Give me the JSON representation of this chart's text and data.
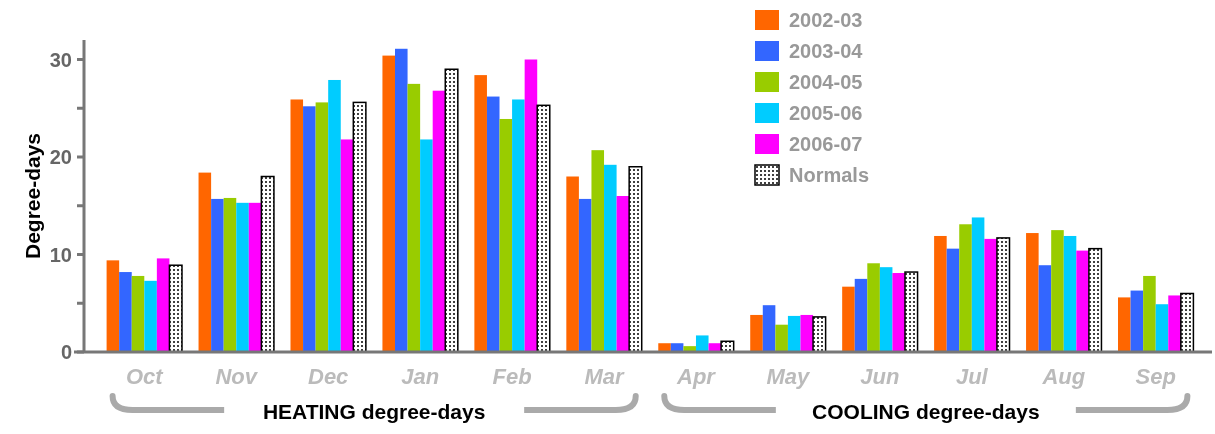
{
  "chart_data": {
    "type": "bar",
    "ylabel": "Degree-days",
    "categories": [
      "Oct",
      "Nov",
      "Dec",
      "Jan",
      "Feb",
      "Mar",
      "Apr",
      "May",
      "Jun",
      "Jul",
      "Aug",
      "Sep"
    ],
    "series": [
      {
        "name": "2002-03",
        "color": "#ff6600",
        "values": [
          9.4,
          18.4,
          25.9,
          30.4,
          28.4,
          18.0,
          0.9,
          3.8,
          6.7,
          11.9,
          12.2,
          5.6
        ]
      },
      {
        "name": "2003-04",
        "color": "#3366ff",
        "values": [
          8.2,
          15.7,
          25.2,
          31.1,
          26.2,
          15.7,
          0.9,
          4.8,
          7.5,
          10.6,
          8.9,
          6.3
        ]
      },
      {
        "name": "2004-05",
        "color": "#99cc00",
        "values": [
          7.8,
          15.8,
          25.6,
          27.5,
          23.9,
          20.7,
          0.6,
          2.8,
          9.1,
          13.1,
          12.5,
          7.8
        ]
      },
      {
        "name": "2005-06",
        "color": "#00ccff",
        "values": [
          7.3,
          15.3,
          27.9,
          21.8,
          25.9,
          19.2,
          1.7,
          3.7,
          8.7,
          13.8,
          11.9,
          4.9
        ]
      },
      {
        "name": "2006-07",
        "color": "#ff00ff",
        "values": [
          9.6,
          15.3,
          21.8,
          26.8,
          30.0,
          16.0,
          0.9,
          3.8,
          8.1,
          11.6,
          10.4,
          5.8
        ]
      },
      {
        "name": "Normals",
        "color": "#000000",
        "values": [
          8.9,
          18.0,
          25.6,
          29.0,
          25.3,
          19.0,
          1.1,
          3.6,
          8.2,
          11.7,
          10.6,
          6.0
        ]
      }
    ],
    "ylim": [
      0,
      32
    ],
    "yticks": [
      0,
      {
        "value": 5,
        "label": null
      },
      10,
      {
        "value": 15,
        "label": null
      },
      20,
      {
        "value": 25,
        "label": null
      },
      30
    ],
    "legend": "top",
    "grid": false,
    "annotations": [
      "HEATING degree-days",
      "COOLING degree-days"
    ]
  }
}
